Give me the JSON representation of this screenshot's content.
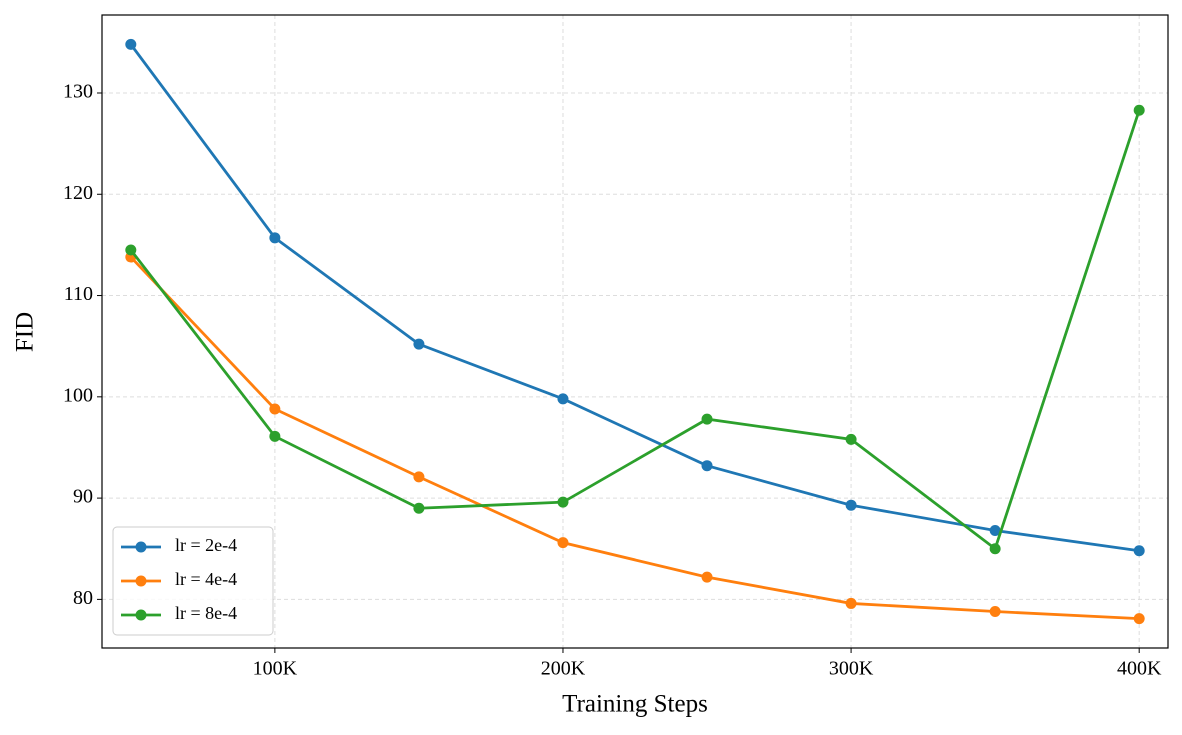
{
  "chart_data": {
    "type": "line",
    "xlabel": "Training Steps",
    "ylabel": "FID",
    "x": [
      50000,
      100000,
      150000,
      200000,
      250000,
      300000,
      350000,
      400000
    ],
    "series": [
      {
        "name": "lr = 2e-4",
        "color": "#1f77b4",
        "values": [
          134.8,
          115.7,
          105.2,
          99.8,
          93.2,
          89.3,
          86.8,
          84.8
        ]
      },
      {
        "name": "lr = 4e-4",
        "color": "#ff7f0e",
        "values": [
          113.8,
          98.8,
          92.1,
          85.6,
          82.2,
          79.6,
          78.8,
          78.1
        ]
      },
      {
        "name": "lr = 8e-4",
        "color": "#2ca02c",
        "values": [
          114.5,
          96.1,
          89.0,
          89.6,
          97.8,
          95.8,
          85.0,
          128.3
        ]
      }
    ],
    "xlim": [
      40000,
      410000
    ],
    "ylim": [
      75.2,
      137.7
    ],
    "xticks": [
      {
        "value": 100000,
        "label": "100K"
      },
      {
        "value": 200000,
        "label": "200K"
      },
      {
        "value": 300000,
        "label": "300K"
      },
      {
        "value": 400000,
        "label": "400K"
      }
    ],
    "yticks": [
      80,
      90,
      100,
      110,
      120,
      130
    ],
    "grid": true,
    "legend": "lower left"
  }
}
